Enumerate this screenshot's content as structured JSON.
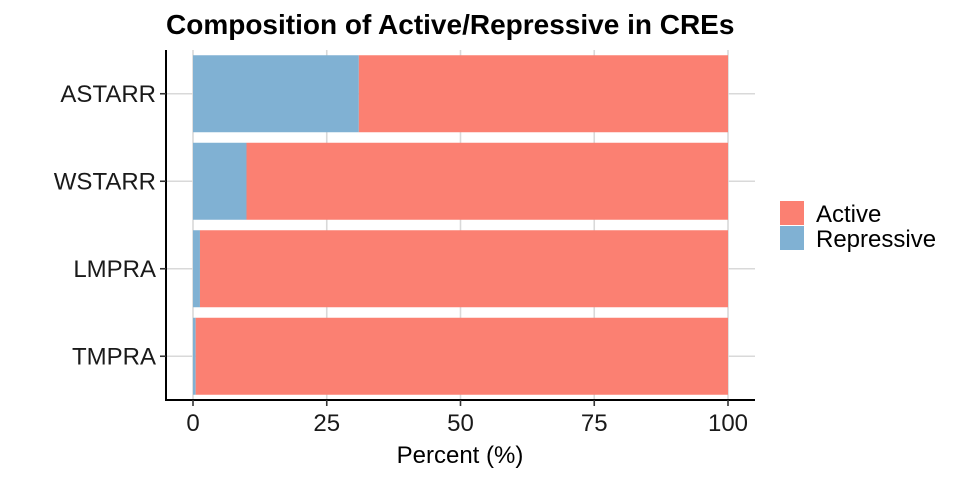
{
  "chart_data": {
    "type": "bar",
    "orientation": "horizontal",
    "stacked": true,
    "title": "Composition of Active/Repressive in CREs",
    "xlabel": "Percent (%)",
    "ylabel": "",
    "xlim": [
      0,
      100
    ],
    "x_ticks": [
      0,
      25,
      50,
      75,
      100
    ],
    "grid": true,
    "legend_position": "right",
    "categories": [
      "ASTARR",
      "WSTARR",
      "LMPRA",
      "TMPRA"
    ],
    "series": [
      {
        "name": "Repressive",
        "color": "#80B1D3",
        "values": [
          31,
          10,
          1.3,
          0.5
        ]
      },
      {
        "name": "Active",
        "color": "#FB8072",
        "values": [
          69,
          90,
          98.7,
          99.5
        ]
      }
    ],
    "legend": [
      {
        "name": "Active",
        "color": "#FB8072"
      },
      {
        "name": "Repressive",
        "color": "#80B1D3"
      }
    ]
  }
}
